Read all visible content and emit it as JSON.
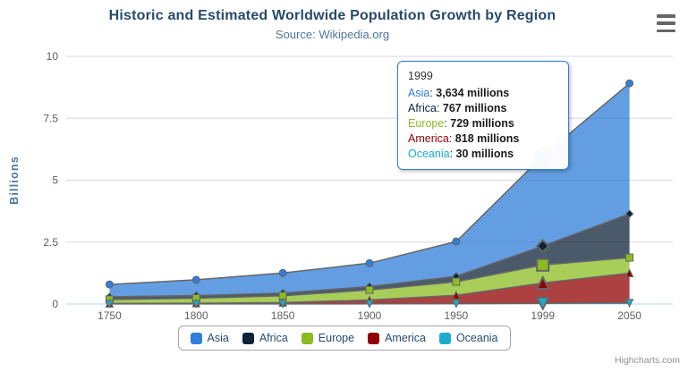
{
  "title": {
    "text": "Historic and Estimated Worldwide Population Growth by Region"
  },
  "subtitle": {
    "text": "Source: Wikipedia.org"
  },
  "y_axis": {
    "title": "Billions",
    "tick_labels": [
      "0",
      "2.5",
      "5",
      "7.5",
      "10"
    ]
  },
  "x_axis": {
    "categories": [
      "1750",
      "1800",
      "1850",
      "1900",
      "1950",
      "1999",
      "2050"
    ]
  },
  "tooltip": {
    "header": "1999",
    "rows": [
      {
        "name": "Asia",
        "color": "#2f7ed8",
        "value": "3,634 millions"
      },
      {
        "name": "Africa",
        "color": "#0d233a",
        "value": "767 millions"
      },
      {
        "name": "Europe",
        "color": "#8bbc21",
        "value": "729 millions"
      },
      {
        "name": "America",
        "color": "#910000",
        "value": "818 millions"
      },
      {
        "name": "Oceania",
        "color": "#1aadce",
        "value": "30 millions"
      }
    ]
  },
  "legend": {
    "items": [
      {
        "label": "Asia",
        "color": "#2f7ed8"
      },
      {
        "label": "Africa",
        "color": "#0d233a"
      },
      {
        "label": "Europe",
        "color": "#8bbc21"
      },
      {
        "label": "America",
        "color": "#910000"
      },
      {
        "label": "Oceania",
        "color": "#1aadce"
      }
    ]
  },
  "credits": {
    "text": "Highcharts.com"
  },
  "icons": {
    "menu": "hamburger-icon"
  },
  "colors": {
    "grid_line": "#d8d8d8",
    "axis_line": "#c0d0e0",
    "series_line": "#666666",
    "tick_label": "#606060",
    "title": "#274b6d",
    "subtitle": "#4d759e",
    "tooltip_border": "#2f7ed8"
  },
  "chart_data": {
    "type": "area",
    "stacking": "normal",
    "title": "Historic and Estimated Worldwide Population Growth by Region",
    "subtitle": "Source: Wikipedia.org",
    "xlabel": "",
    "ylabel": "Billions",
    "unit": "millions",
    "categories": [
      "1750",
      "1800",
      "1850",
      "1900",
      "1950",
      "1999",
      "2050"
    ],
    "series": [
      {
        "name": "Asia",
        "color": "#2f7ed8",
        "marker": "circle",
        "values": [
          502,
          635,
          809,
          947,
          1402,
          3634,
          5268
        ]
      },
      {
        "name": "Africa",
        "color": "#0d233a",
        "marker": "diamond",
        "values": [
          106,
          107,
          111,
          133,
          221,
          767,
          1766
        ]
      },
      {
        "name": "Europe",
        "color": "#8bbc21",
        "marker": "square",
        "values": [
          163,
          203,
          276,
          408,
          547,
          729,
          628
        ]
      },
      {
        "name": "America",
        "color": "#910000",
        "marker": "triangle",
        "values": [
          18,
          31,
          54,
          156,
          339,
          818,
          1201
        ]
      },
      {
        "name": "Oceania",
        "color": "#1aadce",
        "marker": "triangle-down",
        "values": [
          2,
          2,
          2,
          6,
          13,
          30,
          46
        ]
      }
    ],
    "ylim": [
      0,
      10
    ],
    "y_ticks": [
      0,
      2.5,
      5,
      7.5,
      10
    ],
    "grid": true,
    "legend_position": "bottom",
    "hovered_category": "1999",
    "hovered_index": 5,
    "fill_opacity": 0.75
  }
}
